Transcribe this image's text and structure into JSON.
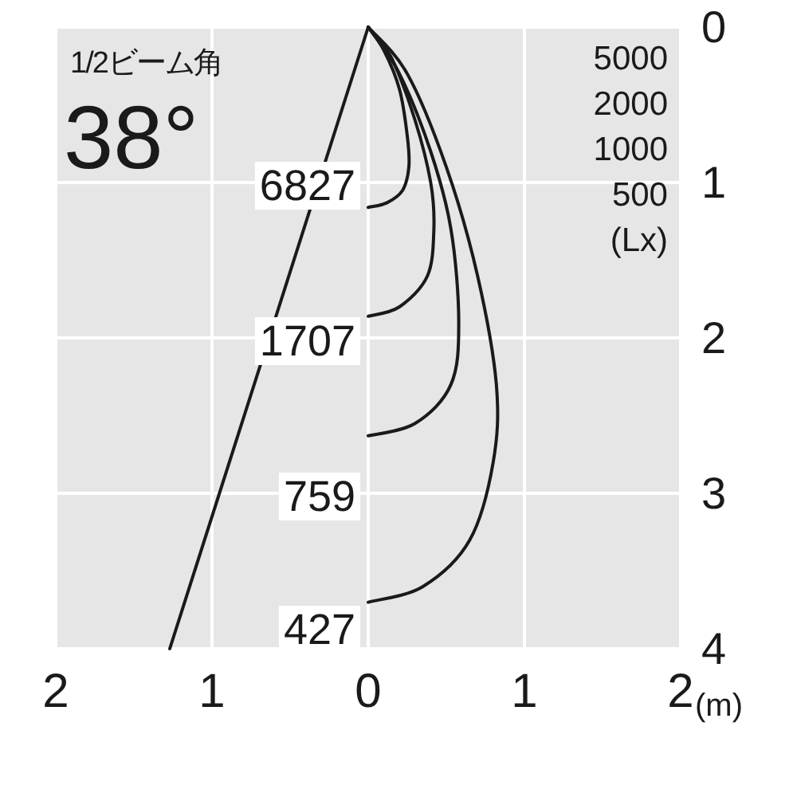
{
  "chart_data": {
    "type": "line",
    "title": "1/2ビーム角",
    "subtitle": "38°",
    "xlabel": "(m)",
    "xlim": [
      -2,
      2
    ],
    "ylim": [
      4,
      0
    ],
    "xticks": [
      {
        "value": -2,
        "label": "2"
      },
      {
        "value": -1,
        "label": "1"
      },
      0,
      1,
      2
    ],
    "yticks": [
      0,
      1,
      2,
      3,
      4
    ],
    "grid": true,
    "legend": "top right",
    "series": [
      {
        "color": "#1a1a1a",
        "x": [
          0,
          -1.27
        ],
        "values": [
          0,
          4
        ]
      },
      {
        "name": "5000",
        "color": "#1a1a1a",
        "x": [
          0,
          0.1,
          0.2,
          0.25,
          0.26,
          0.22,
          0.12,
          0
        ],
        "values": [
          0,
          0.15,
          0.4,
          0.7,
          0.9,
          1.05,
          1.13,
          1.16
        ]
      },
      {
        "name": "2000",
        "color": "#1a1a1a",
        "x": [
          0,
          0.15,
          0.3,
          0.4,
          0.42,
          0.38,
          0.2,
          0
        ],
        "values": [
          0,
          0.2,
          0.6,
          1.0,
          1.3,
          1.6,
          1.8,
          1.86
        ]
      },
      {
        "name": "1000",
        "color": "#1a1a1a",
        "x": [
          0,
          0.2,
          0.4,
          0.53,
          0.58,
          0.53,
          0.3,
          0
        ],
        "values": [
          0,
          0.3,
          0.8,
          1.3,
          1.9,
          2.3,
          2.55,
          2.63
        ]
      },
      {
        "name": "500",
        "color": "#1a1a1a",
        "x": [
          0,
          0.25,
          0.5,
          0.7,
          0.82,
          0.8,
          0.65,
          0.35,
          0
        ],
        "values": [
          0,
          0.3,
          0.9,
          1.6,
          2.3,
          2.8,
          3.3,
          3.6,
          3.7
        ]
      }
    ],
    "annotations": [
      "6827",
      "1707",
      "759",
      "427",
      "(Lx)"
    ]
  }
}
